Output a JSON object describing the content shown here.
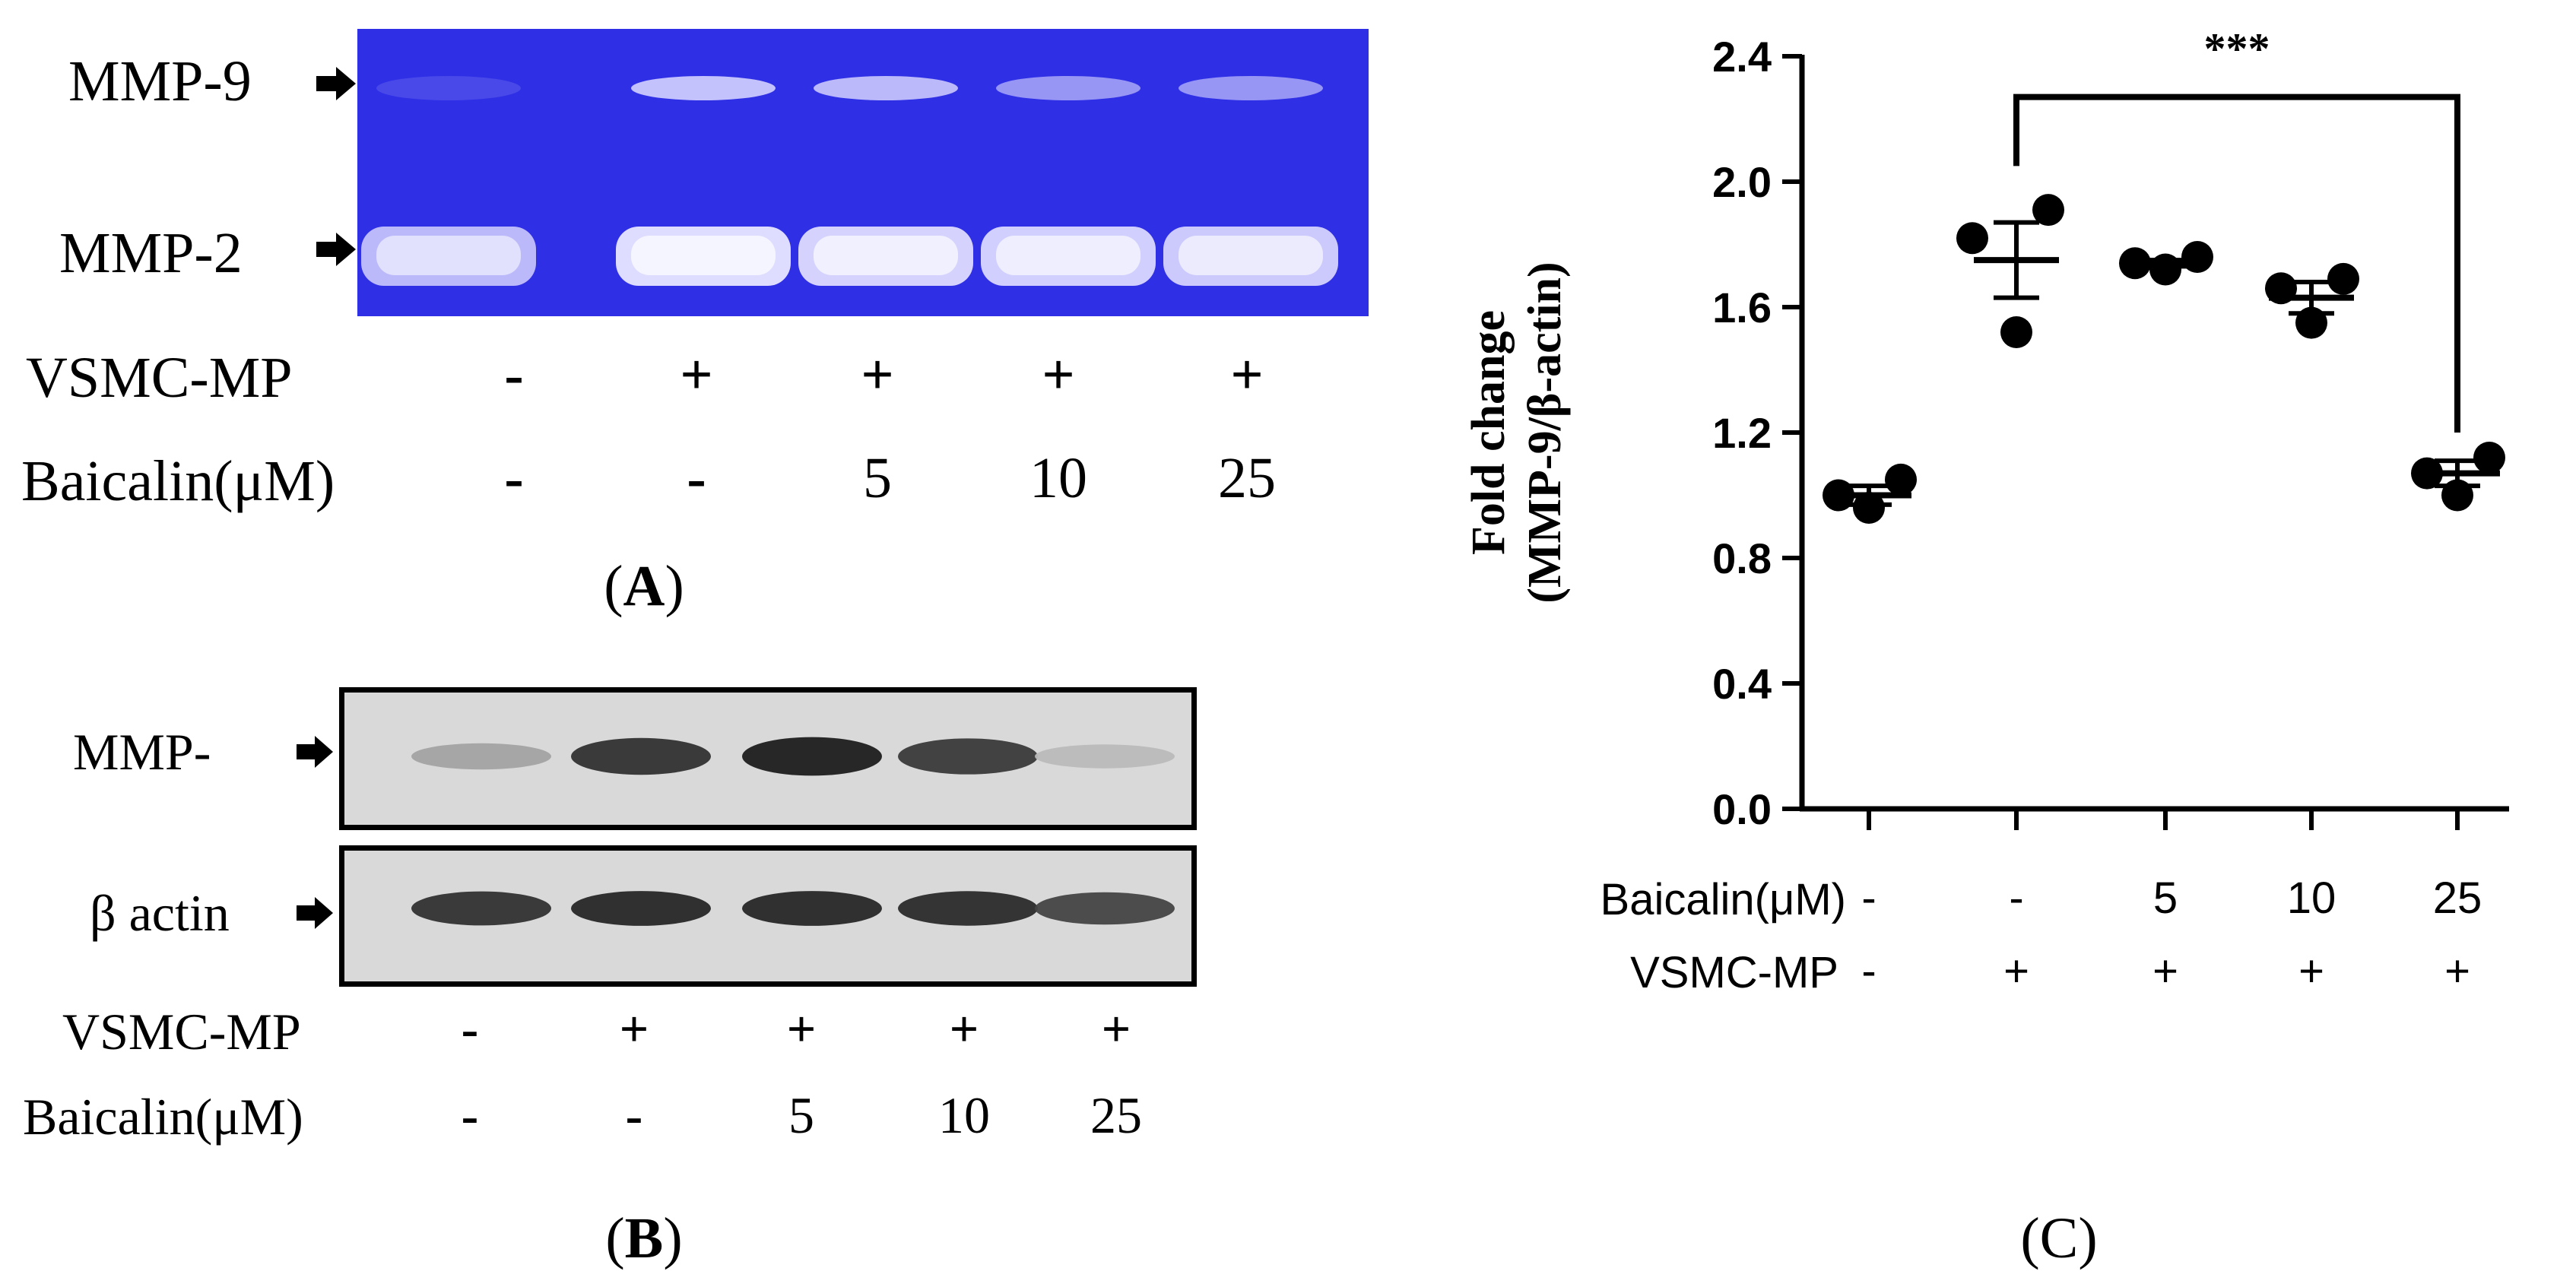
{
  "panelA": {
    "gel_labels": {
      "mmp9": "MMP-9",
      "mmp2": "MMP-2"
    },
    "row_vsmc": {
      "label": "VSMC-MP",
      "values": [
        "-",
        "+",
        "+",
        "+",
        "+"
      ]
    },
    "row_baicalin": {
      "label": "Baicalin(μM)",
      "values": [
        "-",
        "-",
        "5",
        "10",
        "25"
      ]
    },
    "caption": {
      "open": "(",
      "letter": "A",
      "close": ")"
    },
    "gel_color": "#2f2fe6",
    "band_color": "#dedcff"
  },
  "panelB": {
    "blot_labels": {
      "mmp": "MMP-",
      "actin": "β actin"
    },
    "row_vsmc": {
      "label": "VSMC-MP",
      "values": [
        "-",
        "+",
        "+",
        "+",
        "+"
      ]
    },
    "row_baicalin": {
      "label": "Baicalin(μM)",
      "values": [
        "-",
        "-",
        "5",
        "10",
        "25"
      ]
    },
    "caption": {
      "open": "(",
      "letter": "B",
      "close": ")"
    },
    "mmp_band_intensity": [
      0.25,
      0.85,
      0.95,
      0.8,
      0.12
    ],
    "actin_band_intensity": [
      0.85,
      0.9,
      0.9,
      0.88,
      0.75
    ]
  },
  "panelC": {
    "caption": {
      "open": "(",
      "letter": "C",
      "close": ")"
    },
    "significance": "***",
    "row_baicalin": {
      "label": "Baicalin(μM)",
      "values": [
        "-",
        "-",
        "5",
        "10",
        "25"
      ]
    },
    "row_vsmc": {
      "label": "VSMC-MP",
      "values": [
        "-",
        "+",
        "+",
        "+",
        "+"
      ]
    }
  },
  "chart_data": {
    "type": "scatter",
    "ylabel": "Fold change\n(MMP-9/β-actin)",
    "ylim": [
      0,
      2.4
    ],
    "yticks": [
      "0.0",
      "0.4",
      "0.8",
      "1.2",
      "1.6",
      "2.0",
      "2.4"
    ],
    "groups": [
      {
        "points": [
          0.96,
          1.0,
          1.05
        ],
        "mean": 1.0,
        "sem": 0.03
      },
      {
        "points": [
          1.52,
          1.82,
          1.91
        ],
        "mean": 1.75,
        "sem": 0.12
      },
      {
        "points": [
          1.72,
          1.74,
          1.76
        ],
        "mean": 1.74,
        "sem": 0.01
      },
      {
        "points": [
          1.55,
          1.66,
          1.69
        ],
        "mean": 1.63,
        "sem": 0.05
      },
      {
        "points": [
          1.0,
          1.07,
          1.12
        ],
        "mean": 1.07,
        "sem": 0.04
      }
    ],
    "comparison": {
      "from_group": 2,
      "to_group": 5,
      "label": "***"
    },
    "grid": false
  }
}
